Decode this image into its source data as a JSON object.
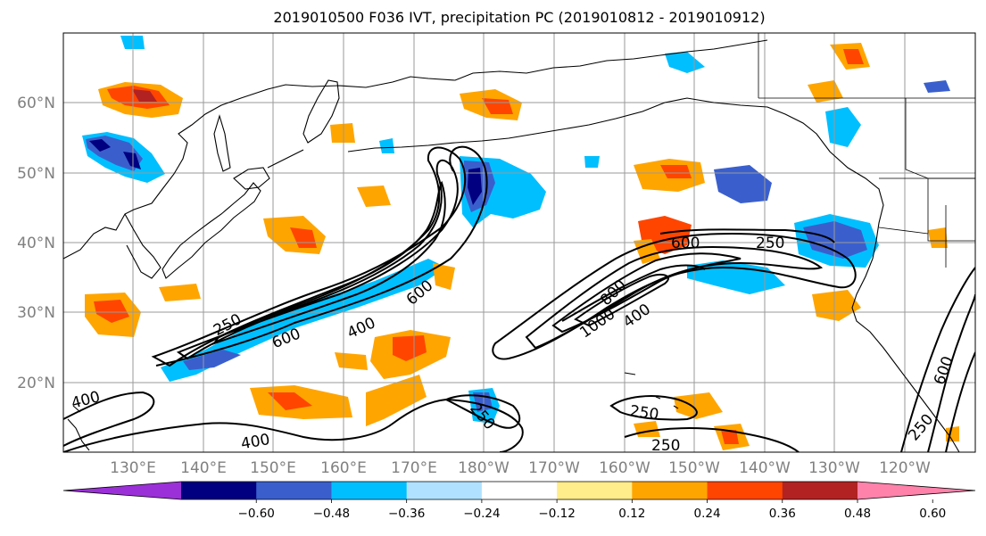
{
  "title": "2019010500 F036 IVT, precipitation PC (2019010812 - 2019010912)",
  "map": {
    "lat_labels": [
      "60°N",
      "50°N",
      "40°N",
      "30°N",
      "20°N"
    ],
    "lon_labels": [
      "130°E",
      "140°E",
      "150°E",
      "160°E",
      "170°E",
      "180°W",
      "170°W",
      "160°W",
      "150°W",
      "140°W",
      "130°W",
      "120°W"
    ],
    "lon_range": [
      120,
      250
    ],
    "lat_range": [
      10,
      70
    ],
    "grid": true
  },
  "colorbar": {
    "ticks": [
      "−0.60",
      "−0.48",
      "−0.36",
      "−0.24",
      "−0.12",
      "0.12",
      "0.24",
      "0.36",
      "0.48",
      "0.60"
    ],
    "colors": [
      "#9b30d8",
      "#000080",
      "#3a5fcd",
      "#00bfff",
      "#b0e2ff",
      "#ffffff",
      "#ffec8b",
      "#ffa500",
      "#ff4500",
      "#b22222",
      "#ff82ab"
    ],
    "extend": "both"
  },
  "contours": {
    "variable": "IVT",
    "levels": [
      250,
      400,
      600,
      800,
      1000
    ],
    "labels": [
      "250",
      "600",
      "400",
      "600",
      "250",
      "600",
      "400",
      "1000",
      "800",
      "600",
      "250",
      "250",
      "250",
      "250",
      "400",
      "600",
      "400",
      "250",
      "250"
    ]
  }
}
